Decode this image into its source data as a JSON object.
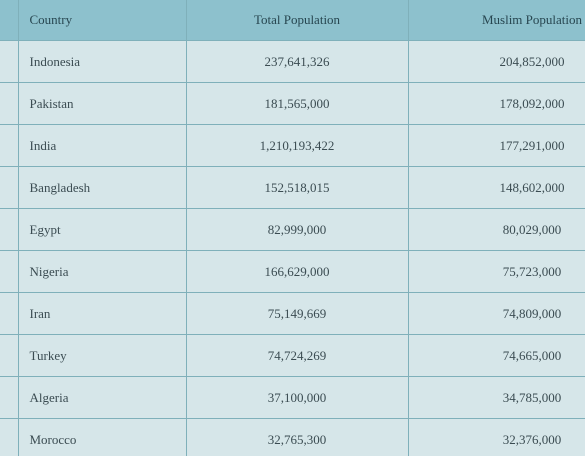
{
  "table": {
    "header": [
      "Country",
      "Total Population",
      "Muslim Population"
    ],
    "rows": [
      [
        "Indonesia",
        "237,641,326",
        "204,852,000"
      ],
      [
        "Pakistan",
        "181,565,000",
        "178,092,000"
      ],
      [
        "India",
        "1,210,193,422",
        "177,291,000"
      ],
      [
        "Bangladesh",
        "152,518,015",
        "148,602,000"
      ],
      [
        "Egypt",
        "82,999,000",
        "80,029,000"
      ],
      [
        "Nigeria",
        "166,629,000",
        "75,723,000"
      ],
      [
        "Iran",
        "75,149,669",
        "74,809,000"
      ],
      [
        "Turkey",
        "74,724,269",
        "74,665,000"
      ],
      [
        "Algeria",
        "37,100,000",
        "34,785,000"
      ],
      [
        "Morocco",
        "32,765,300",
        "32,376,000"
      ]
    ]
  }
}
